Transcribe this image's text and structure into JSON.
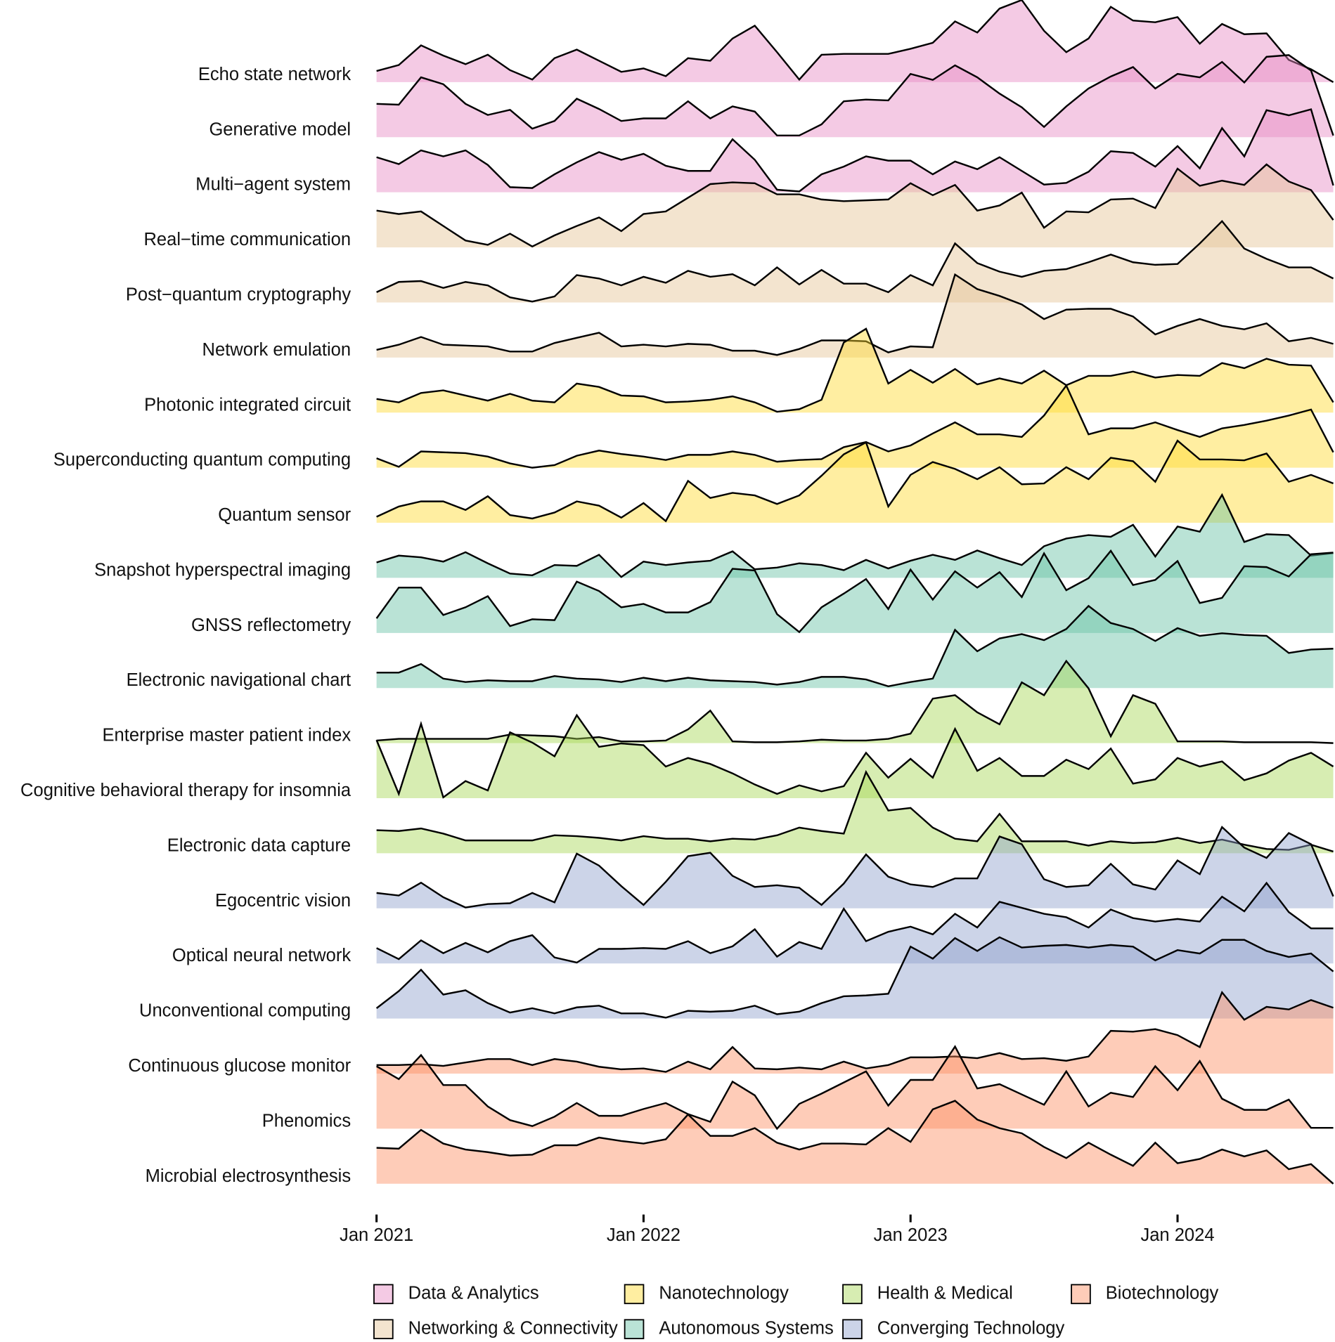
{
  "chart_data": {
    "type": "ridgeline",
    "x": [
      "2021-01",
      "2021-02",
      "2021-03",
      "2021-04",
      "2021-05",
      "2021-06",
      "2021-07",
      "2021-08",
      "2021-09",
      "2021-10",
      "2021-11",
      "2021-12",
      "2022-01",
      "2022-02",
      "2022-03",
      "2022-04",
      "2022-05",
      "2022-06",
      "2022-07",
      "2022-08",
      "2022-09",
      "2022-10",
      "2022-11",
      "2022-12",
      "2023-01",
      "2023-02",
      "2023-03",
      "2023-04",
      "2023-05",
      "2023-06",
      "2023-07",
      "2023-08",
      "2023-09",
      "2023-10",
      "2023-11",
      "2023-12",
      "2024-01",
      "2024-02",
      "2024-03",
      "2024-04",
      "2024-05",
      "2024-06",
      "2024-07",
      "2024-08"
    ],
    "xlim": [
      "2021-01",
      "2024-08"
    ],
    "xticks": [
      {
        "value": "2021-01",
        "label": "Jan 2021"
      },
      {
        "value": "2022-01",
        "label": "Jan 2022"
      },
      {
        "value": "2023-01",
        "label": "Jan 2023"
      },
      {
        "value": "2024-01",
        "label": "Jan 2024"
      }
    ],
    "series": [
      {
        "name": "Echo state network",
        "color": "#e78ac3",
        "values": [
          13,
          20,
          43,
          31,
          21,
          32,
          14,
          3,
          28,
          38,
          25,
          12,
          16,
          7,
          28,
          25,
          51,
          66,
          35,
          3,
          32,
          33,
          33,
          33,
          39,
          46,
          71,
          58,
          86,
          96,
          60,
          35,
          51,
          88,
          72,
          70,
          76,
          45,
          68,
          56,
          57,
          26,
          15,
          0
        ]
      },
      {
        "name": "Generative model",
        "color": "#e78ac3",
        "values": [
          39,
          38,
          70,
          62,
          39,
          26,
          32,
          10,
          19,
          45,
          33,
          19,
          22,
          22,
          42,
          22,
          36,
          30,
          2,
          2,
          15,
          42,
          44,
          43,
          74,
          67,
          84,
          70,
          51,
          35,
          12,
          36,
          57,
          71,
          82,
          57,
          74,
          70,
          88,
          64,
          94,
          96,
          78,
          2
        ]
      },
      {
        "name": "Multi−agent system",
        "color": "#e78ac3",
        "values": [
          41,
          33,
          49,
          42,
          49,
          32,
          6,
          5,
          21,
          35,
          47,
          38,
          45,
          31,
          25,
          25,
          62,
          38,
          3,
          1,
          21,
          30,
          42,
          37,
          37,
          21,
          36,
          27,
          41,
          25,
          9,
          11,
          24,
          48,
          46,
          30,
          54,
          28,
          75,
          42,
          96,
          90,
          97,
          8
        ]
      },
      {
        "name": "Real−time communication",
        "color": "#e5c494",
        "values": [
          43,
          39,
          42,
          25,
          8,
          3,
          16,
          1,
          14,
          25,
          35,
          19,
          39,
          42,
          58,
          74,
          76,
          75,
          62,
          62,
          56,
          54,
          55,
          56,
          75,
          61,
          73,
          43,
          49,
          64,
          23,
          42,
          41,
          56,
          57,
          46,
          92,
          72,
          78,
          73,
          97,
          77,
          67,
          32
        ]
      },
      {
        "name": "Post−quantum cryptography",
        "color": "#e5c494",
        "values": [
          12,
          24,
          25,
          17,
          24,
          20,
          6,
          1,
          7,
          32,
          28,
          20,
          30,
          23,
          37,
          30,
          33,
          20,
          41,
          21,
          38,
          22,
          22,
          12,
          32,
          20,
          69,
          46,
          36,
          30,
          37,
          39,
          47,
          56,
          47,
          44,
          45,
          69,
          95,
          63,
          51,
          41,
          41,
          28
        ]
      },
      {
        "name": "Network emulation",
        "color": "#e5c494",
        "values": [
          9,
          15,
          24,
          15,
          14,
          13,
          7,
          7,
          17,
          23,
          29,
          13,
          15,
          13,
          16,
          15,
          8,
          8,
          3,
          10,
          20,
          20,
          19,
          6,
          13,
          12,
          97,
          80,
          72,
          62,
          45,
          56,
          57,
          57,
          48,
          27,
          37,
          45,
          37,
          33,
          40,
          19,
          23,
          16
        ]
      },
      {
        "name": "Photonic integrated circuit",
        "color": "#ffd92f",
        "values": [
          16,
          12,
          23,
          26,
          20,
          14,
          22,
          14,
          12,
          34,
          30,
          20,
          19,
          12,
          13,
          15,
          19,
          12,
          1,
          4,
          15,
          82,
          98,
          34,
          50,
          35,
          51,
          33,
          40,
          34,
          49,
          32,
          43,
          43,
          48,
          41,
          44,
          43,
          58,
          52,
          63,
          56,
          55,
          12
        ]
      },
      {
        "name": "Superconducting quantum computing",
        "color": "#ffd92f",
        "values": [
          11,
          1,
          19,
          18,
          17,
          13,
          5,
          0,
          3,
          14,
          20,
          16,
          13,
          9,
          15,
          15,
          19,
          15,
          7,
          9,
          10,
          24,
          30,
          19,
          26,
          40,
          53,
          39,
          39,
          36,
          61,
          96,
          39,
          46,
          46,
          53,
          44,
          36,
          46,
          50,
          55,
          61,
          68,
          18
        ]
      },
      {
        "name": "Quantum sensor",
        "color": "#ffd92f",
        "values": [
          7,
          19,
          25,
          25,
          15,
          31,
          9,
          5,
          12,
          25,
          20,
          6,
          23,
          2,
          49,
          29,
          35,
          32,
          22,
          32,
          55,
          80,
          94,
          19,
          56,
          71,
          63,
          51,
          65,
          45,
          46,
          65,
          51,
          76,
          72,
          48,
          96,
          74,
          74,
          73,
          81,
          48,
          56,
          46
        ]
      },
      {
        "name": "Snapshot hyperspectral imaging",
        "color": "#66c2a5",
        "values": [
          18,
          26,
          24,
          19,
          30,
          17,
          5,
          3,
          15,
          14,
          27,
          1,
          19,
          15,
          18,
          20,
          31,
          10,
          12,
          17,
          15,
          9,
          21,
          11,
          20,
          27,
          21,
          32,
          23,
          15,
          37,
          46,
          50,
          48,
          62,
          25,
          60,
          54,
          97,
          42,
          51,
          50,
          26,
          29
        ]
      },
      {
        "name": "GNSS reflectometry",
        "color": "#66c2a5",
        "values": [
          17,
          53,
          53,
          21,
          30,
          43,
          8,
          16,
          15,
          60,
          49,
          30,
          34,
          24,
          24,
          36,
          75,
          73,
          22,
          1,
          30,
          46,
          63,
          28,
          74,
          39,
          72,
          53,
          71,
          42,
          93,
          50,
          64,
          96,
          56,
          62,
          84,
          35,
          41,
          78,
          77,
          66,
          92,
          94
        ]
      },
      {
        "name": "Electronic navigational chart",
        "color": "#66c2a5",
        "values": [
          18,
          18,
          28,
          11,
          7,
          9,
          8,
          8,
          14,
          11,
          10,
          7,
          12,
          8,
          12,
          9,
          8,
          7,
          4,
          7,
          13,
          13,
          10,
          2,
          7,
          11,
          68,
          43,
          58,
          63,
          56,
          69,
          96,
          76,
          69,
          55,
          70,
          61,
          64,
          62,
          61,
          41,
          45,
          46
        ]
      },
      {
        "name": "Enterprise master patient index",
        "color": "#a6d854",
        "values": [
          3,
          5,
          5,
          5,
          5,
          5,
          10,
          9,
          8,
          5,
          7,
          2,
          2,
          3,
          16,
          38,
          2,
          1,
          1,
          2,
          4,
          3,
          3,
          5,
          11,
          52,
          56,
          36,
          22,
          71,
          56,
          96,
          64,
          8,
          56,
          46,
          2,
          2,
          2,
          1,
          1,
          1,
          1,
          0
        ]
      },
      {
        "name": "Cognitive behavioral therapy for insomnia",
        "color": "#a6d854",
        "values": [
          68,
          5,
          87,
          1,
          20,
          9,
          77,
          65,
          49,
          97,
          60,
          64,
          62,
          37,
          47,
          40,
          29,
          16,
          5,
          15,
          8,
          14,
          53,
          24,
          46,
          24,
          81,
          32,
          47,
          26,
          26,
          45,
          34,
          58,
          17,
          22,
          47,
          37,
          43,
          21,
          29,
          44,
          53,
          37
        ]
      },
      {
        "name": "Electronic data capture",
        "color": "#a6d854",
        "values": [
          27,
          26,
          29,
          23,
          15,
          15,
          15,
          15,
          21,
          20,
          18,
          15,
          20,
          17,
          17,
          14,
          17,
          16,
          21,
          30,
          26,
          23,
          95,
          50,
          53,
          30,
          17,
          14,
          46,
          14,
          14,
          14,
          9,
          14,
          12,
          13,
          18,
          12,
          16,
          10,
          5,
          4,
          10,
          2
        ]
      },
      {
        "name": "Egocentric vision",
        "color": "#8da0cb",
        "values": [
          18,
          15,
          30,
          13,
          1,
          5,
          6,
          18,
          7,
          64,
          50,
          26,
          4,
          31,
          61,
          65,
          38,
          25,
          27,
          24,
          4,
          29,
          63,
          37,
          28,
          25,
          35,
          35,
          84,
          75,
          34,
          25,
          27,
          52,
          28,
          22,
          56,
          40,
          95,
          71,
          59,
          88,
          75,
          14
        ]
      },
      {
        "name": "Optical neural network",
        "color": "#8da0cb",
        "values": [
          18,
          5,
          27,
          12,
          24,
          13,
          26,
          33,
          7,
          1,
          17,
          17,
          18,
          17,
          26,
          12,
          20,
          40,
          8,
          25,
          17,
          64,
          26,
          37,
          43,
          34,
          58,
          42,
          72,
          65,
          58,
          54,
          42,
          63,
          53,
          49,
          52,
          49,
          78,
          61,
          94,
          60,
          41,
          41
        ]
      },
      {
        "name": "Unconventional computing",
        "color": "#8da0cb",
        "values": [
          12,
          32,
          57,
          28,
          33,
          18,
          7,
          12,
          6,
          13,
          15,
          6,
          6,
          1,
          9,
          8,
          9,
          15,
          5,
          8,
          18,
          26,
          27,
          29,
          84,
          70,
          94,
          79,
          95,
          83,
          85,
          86,
          83,
          86,
          84,
          68,
          80,
          76,
          92,
          92,
          79,
          72,
          76,
          55
        ]
      },
      {
        "name": "Continuous glucose monitor",
        "color": "#fc8d62",
        "values": [
          10,
          10,
          11,
          9,
          13,
          17,
          17,
          10,
          17,
          14,
          8,
          5,
          6,
          2,
          14,
          5,
          31,
          6,
          5,
          7,
          5,
          14,
          6,
          10,
          19,
          19,
          20,
          18,
          24,
          17,
          18,
          15,
          20,
          50,
          49,
          52,
          45,
          31,
          95,
          63,
          78,
          75,
          86,
          77
        ]
      },
      {
        "name": "Phenomics",
        "color": "#fc8d62",
        "values": [
          73,
          58,
          86,
          51,
          51,
          26,
          10,
          3,
          14,
          30,
          15,
          15,
          23,
          30,
          17,
          8,
          55,
          39,
          0,
          29,
          41,
          54,
          67,
          27,
          57,
          57,
          96,
          47,
          52,
          40,
          28,
          67,
          26,
          42,
          37,
          73,
          45,
          79,
          35,
          22,
          22,
          34,
          1,
          1
        ]
      },
      {
        "name": "Microbial electrosynthesis",
        "color": "#fc8d62",
        "values": [
          42,
          41,
          63,
          47,
          40,
          37,
          33,
          34,
          45,
          45,
          54,
          50,
          47,
          52,
          81,
          56,
          56,
          65,
          48,
          40,
          47,
          47,
          46,
          65,
          49,
          87,
          97,
          75,
          65,
          59,
          43,
          30,
          48,
          34,
          21,
          48,
          24,
          29,
          40,
          32,
          39,
          17,
          23,
          0
        ]
      }
    ],
    "legend": [
      {
        "name": "Data & Analytics",
        "color": "#e78ac3"
      },
      {
        "name": "Networking & Connectivity",
        "color": "#e5c494"
      },
      {
        "name": "Nanotechnology",
        "color": "#ffd92f"
      },
      {
        "name": "Autonomous Systems",
        "color": "#66c2a5"
      },
      {
        "name": "Health & Medical",
        "color": "#a6d854"
      },
      {
        "name": "Converging Technology",
        "color": "#8da0cb"
      },
      {
        "name": "Biotechnology",
        "color": "#fc8d62"
      }
    ],
    "legend_position": "bottom"
  }
}
